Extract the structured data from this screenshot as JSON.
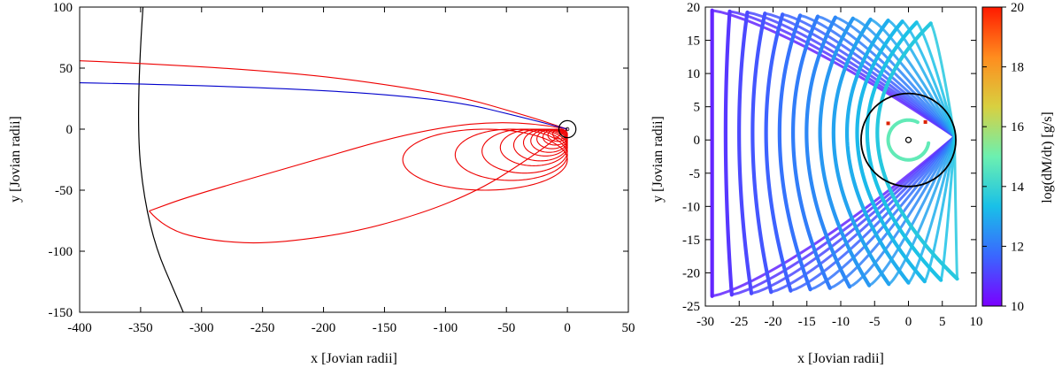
{
  "chart_data": [
    {
      "type": "line",
      "xlabel": "x [Jovian radii]",
      "ylabel": "y [Jovian radii]",
      "xlim": [
        -400,
        50
      ],
      "ylim": [
        -150,
        100
      ],
      "xticks": [
        "-400",
        "-350",
        "-300",
        "-250",
        "-200",
        "-150",
        "-100",
        "-50",
        "0",
        "50"
      ],
      "yticks": [
        "100",
        "50",
        "0",
        "-50",
        "-100",
        "-150"
      ],
      "colors": {
        "orbits": "#ee0000",
        "blue_track": "#0000cc",
        "boundary": "#000000"
      },
      "boundary_arc": [
        [
          -345,
          140
        ],
        [
          -355,
          20
        ],
        [
          -345,
          -80
        ],
        [
          -315,
          -150
        ]
      ],
      "blue_track": [
        [
          -400,
          38
        ],
        [
          -250,
          35
        ],
        [
          -100,
          25
        ],
        [
          -30,
          8
        ],
        [
          0,
          0
        ]
      ],
      "red_open_track": [
        [
          -400,
          56
        ],
        [
          -250,
          50
        ],
        [
          -100,
          30
        ],
        [
          -30,
          10
        ],
        [
          0,
          0
        ]
      ],
      "red_big_loop": {
        "x_min": -343,
        "y_min": -94,
        "y_at_x_min": -67
      },
      "red_loops": [
        {
          "x_min": -135,
          "y_extent": [
            -50,
            0
          ]
        },
        {
          "x_min": -92,
          "y_extent": [
            -42,
            0
          ]
        },
        {
          "x_min": -70,
          "y_extent": [
            -36,
            0
          ]
        },
        {
          "x_min": -55,
          "y_extent": [
            -30,
            0
          ]
        },
        {
          "x_min": -44,
          "y_extent": [
            -26,
            0
          ]
        },
        {
          "x_min": -36,
          "y_extent": [
            -22,
            0
          ]
        },
        {
          "x_min": -30,
          "y_extent": [
            -19,
            0
          ]
        },
        {
          "x_min": -25,
          "y_extent": [
            -16,
            0
          ]
        },
        {
          "x_min": -20,
          "y_extent": [
            -13,
            0
          ]
        },
        {
          "x_min": -16,
          "y_extent": [
            -10,
            0
          ]
        },
        {
          "x_min": -12,
          "y_extent": [
            -8,
            0
          ]
        }
      ],
      "inner_circle_radius": 7
    },
    {
      "type": "scatter",
      "xlabel": "x [Jovian radii]",
      "ylabel": "y [Jovian radii]",
      "xlim": [
        -30,
        10
      ],
      "ylim": [
        -25,
        20
      ],
      "xticks": [
        "-30",
        "-25",
        "-20",
        "-15",
        "-10",
        "-5",
        "0",
        "5",
        "10"
      ],
      "yticks": [
        "20",
        "15",
        "10",
        "5",
        "0",
        "-5",
        "-10",
        "-15",
        "-20",
        "-25"
      ],
      "colorbar": {
        "label": "log(dM/dt) [g/s]",
        "range": [
          10,
          20
        ],
        "ticks": [
          "20",
          "18",
          "16",
          "14",
          "12",
          "10"
        ],
        "stops": [
          "#7a00ff",
          "#3a66ff",
          "#19c0e8",
          "#6cf0b0",
          "#d8d040",
          "#ff8c1e",
          "#ff1a00"
        ]
      },
      "arcs": [
        {
          "x_min": -29,
          "log_mdot": 10.6
        },
        {
          "x_min": -27,
          "log_mdot": 10.9
        },
        {
          "x_min": -25,
          "log_mdot": 11.2
        },
        {
          "x_min": -23,
          "log_mdot": 11.4
        },
        {
          "x_min": -21,
          "log_mdot": 11.6
        },
        {
          "x_min": -19,
          "log_mdot": 11.9
        },
        {
          "x_min": -17,
          "log_mdot": 12.1
        },
        {
          "x_min": -15,
          "log_mdot": 12.3
        },
        {
          "x_min": -13,
          "log_mdot": 12.6
        },
        {
          "x_min": -11,
          "log_mdot": 12.8
        },
        {
          "x_min": -9,
          "log_mdot": 13.0
        },
        {
          "x_min": -7.5,
          "log_mdot": 13.2
        },
        {
          "x_min": -6,
          "log_mdot": 13.4
        },
        {
          "x_min": -4.5,
          "log_mdot": 13.6
        }
      ],
      "inner_loop": {
        "radius": 3,
        "log_mdot": 14.8
      },
      "circle_radius": 7,
      "markers": [
        [
          -3,
          2.5
        ],
        [
          2.5,
          2.7
        ]
      ],
      "marker_color": "#dd2200"
    }
  ]
}
